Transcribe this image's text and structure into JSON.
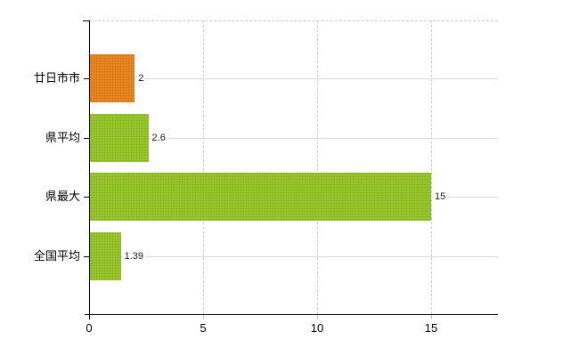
{
  "chart_data": {
    "type": "bar",
    "orientation": "horizontal",
    "title": "",
    "xlabel": "",
    "ylabel": "",
    "categories": [
      "廿日市市",
      "県平均",
      "県最大",
      "全国平均"
    ],
    "values": [
      2,
      2.6,
      15,
      1.39
    ],
    "value_labels": [
      "2",
      "2.6",
      "15",
      "1.39"
    ],
    "bar_colors": [
      "#ea8a1e",
      "#9bc92c",
      "#9bc92c",
      "#9bc92c"
    ],
    "bar_dot_colors": [
      "#d4701c",
      "#7fae20",
      "#7fae20",
      "#7fae20"
    ],
    "xlim": [
      0,
      17.93
    ],
    "xticks": [
      0,
      5,
      10,
      15
    ],
    "xtick_labels": [
      "0",
      "5",
      "10",
      "15"
    ],
    "grid": {
      "horizontal": "solid",
      "vertical": "dashed",
      "top_border": "dashed"
    },
    "legend": null
  },
  "colors": {
    "background": "#ffffff",
    "axis": "#000000",
    "grid_horizontal": "#d5ddd5",
    "grid_vertical": "#d4c9d1",
    "top_border": "#cdc6cc",
    "text": "#000000",
    "bar_orange": "#ea8a1e",
    "bar_green": "#9bc92c"
  }
}
